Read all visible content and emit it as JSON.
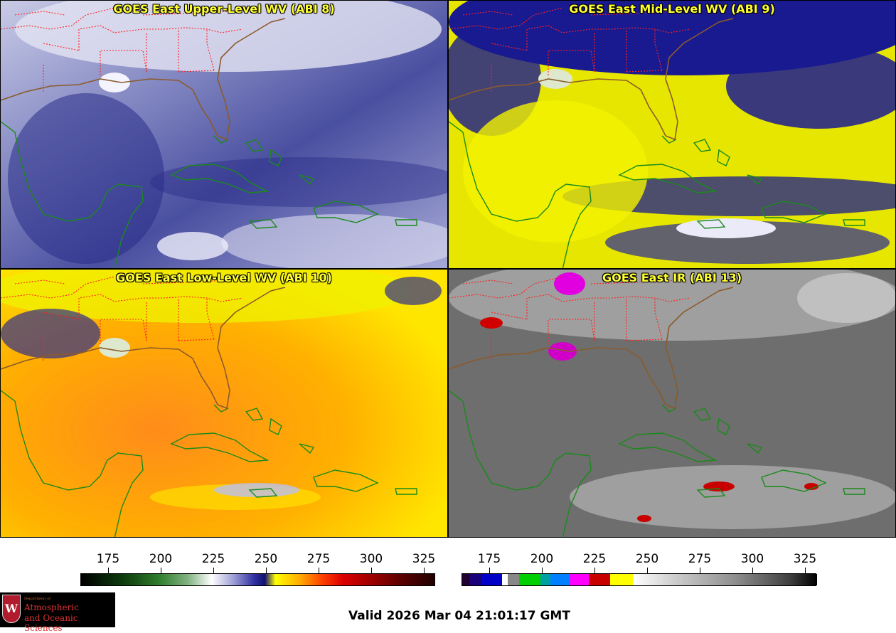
{
  "panels": [
    {
      "id": "p1",
      "title": "GOES East Upper-Level WV (ABI 8)",
      "palette": "upper"
    },
    {
      "id": "p2",
      "title": "GOES East Mid-Level WV (ABI 9)",
      "palette": "mid"
    },
    {
      "id": "p3",
      "title": "GOES East Low-Level WV (ABI 10)",
      "palette": "low"
    },
    {
      "id": "p4",
      "title": "GOES East IR (ABI 13)",
      "palette": "ir"
    }
  ],
  "colorbars": {
    "wv": {
      "ticks": [
        "175",
        "200",
        "225",
        "250",
        "275",
        "300",
        "325"
      ]
    },
    "ir": {
      "ticks": [
        "175",
        "200",
        "225",
        "250",
        "275",
        "300",
        "325"
      ]
    }
  },
  "colors": {
    "coastline": "#1a8a1a",
    "state_border": "#ff2020",
    "gulf_coast": "#8b5a2b"
  },
  "logo": {
    "line1": "Department of",
    "line2": "Atmospheric",
    "line3": "and Oceanic Sciences",
    "emblem": "W"
  },
  "valid_time": "Valid 2026 Mar 04 21:01:17 GMT"
}
